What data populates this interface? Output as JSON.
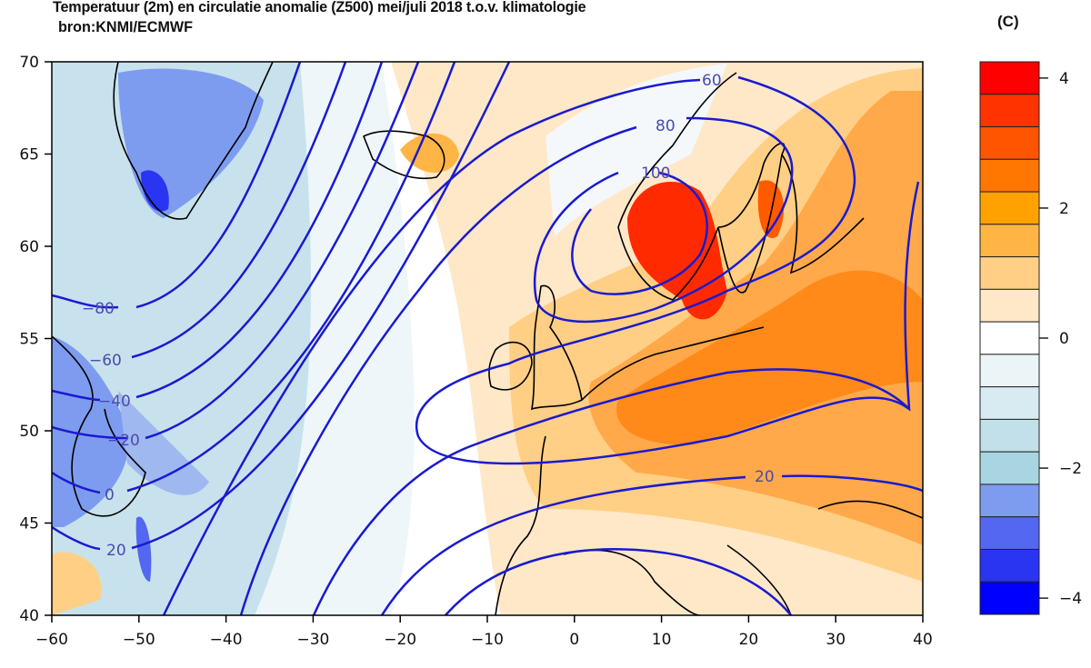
{
  "title": "Temperatuur (2m) en circulatie anomalie (Z500) mei/juli 2018 t.o.v. klimatologie",
  "subtitle": "bron:KNMI/ECMWF",
  "colorbar": {
    "unit": "(C)",
    "tick_labels": [
      "4",
      "2",
      "0",
      "−2",
      "−4"
    ],
    "bin_centers": [
      4,
      3.5,
      3,
      2.5,
      2,
      1.5,
      1,
      0.5,
      0,
      -0.5,
      -1,
      -1.5,
      -2,
      -2.5,
      -3,
      -3.5,
      -4
    ],
    "colors": [
      "#ff0000",
      "#ff3300",
      "#ff5500",
      "#ff7700",
      "#ffa200",
      "#ffb545",
      "#ffcf85",
      "#ffe8c8",
      "#ffffff",
      "#ebf4f7",
      "#d8eaf2",
      "#c2e0ea",
      "#a9d5e3",
      "#7d9cf0",
      "#5467f0",
      "#2a35f2",
      "#0000ff"
    ]
  },
  "axes": {
    "x_tick_labels": [
      "−60",
      "−50",
      "−40",
      "−30",
      "−20",
      "−10",
      "0",
      "10",
      "20",
      "30",
      "40"
    ],
    "y_tick_labels": [
      "70",
      "65",
      "60",
      "55",
      "50",
      "45",
      "40"
    ],
    "lon_range": [
      -60,
      40
    ],
    "lat_range": [
      40,
      70
    ]
  },
  "contour_labels": [
    "−80",
    "−60",
    "−40",
    "−20",
    "0",
    "20",
    "60",
    "80",
    "100",
    "20"
  ]
}
